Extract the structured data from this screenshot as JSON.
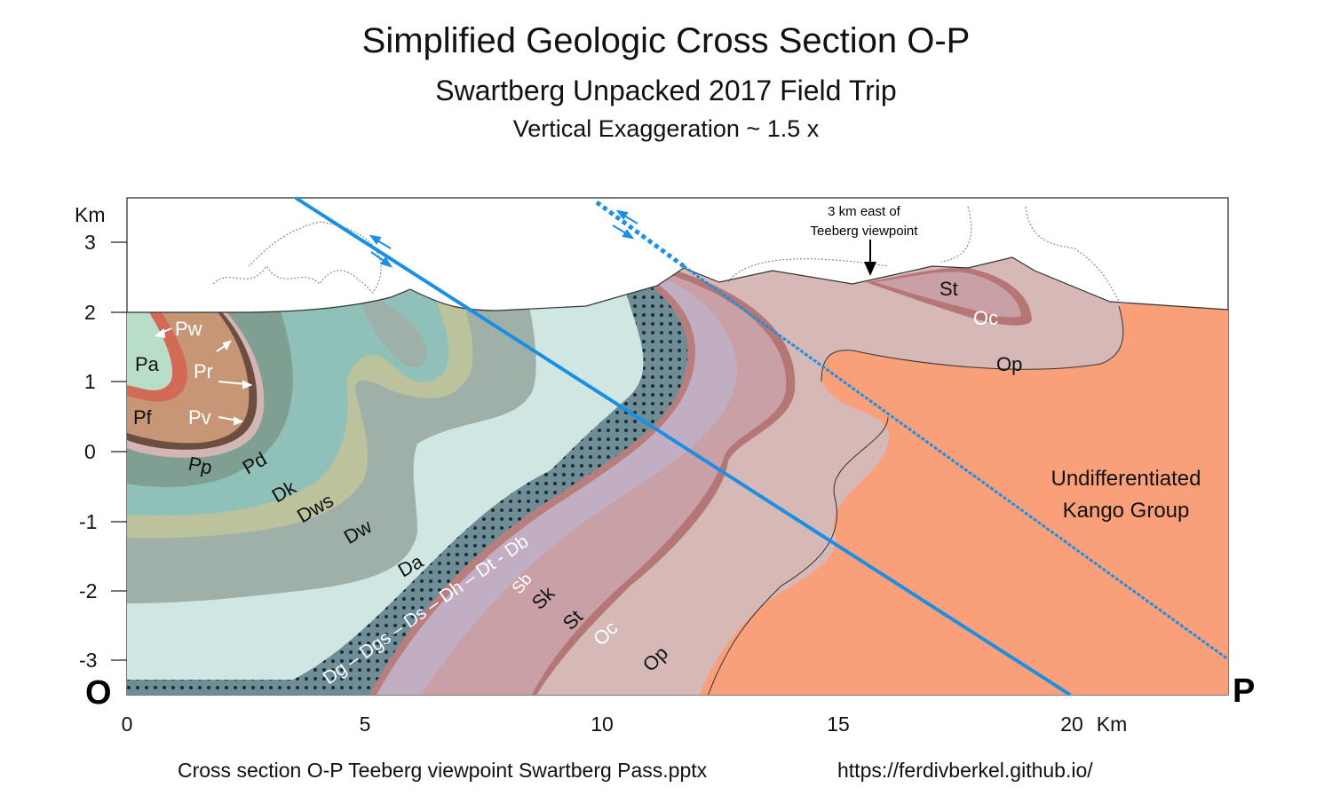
{
  "title": "Simplified Geologic Cross Section O-P",
  "subtitle": "Swartberg Unpacked 2017 Field Trip",
  "note": "Vertical Exaggeration ~ 1.5 x",
  "footer": {
    "file": "Cross section O-P Teeberg viewpoint Swartberg Pass.pptx",
    "url": "https://ferdivberkel.github.io/"
  },
  "axes": {
    "y_unit": "Km",
    "y_ticks": [
      "3",
      "2",
      "1",
      "0",
      "-1",
      "-2",
      "-3"
    ],
    "x_ticks": [
      "0",
      "5",
      "10",
      "15",
      "20"
    ],
    "x_unit": "Km",
    "left_end": "O",
    "right_end": "P"
  },
  "annotation": {
    "line1": "3 km east of",
    "line2": "Teeberg viewpoint"
  },
  "units": {
    "Pa": "Pa",
    "Pw": "Pw",
    "Pr": "Pr",
    "Pf": "Pf",
    "Pv": "Pv",
    "Pp": "Pp",
    "Pd": "Pd",
    "Dk": "Dk",
    "Dws": "Dws",
    "Dw": "Dw",
    "Da": "Da",
    "Dg_chain": "Dg – Dgs – Ds – Dh – Dt - Db",
    "Sb": "Sb",
    "Sk": "Sk",
    "St_lower": "St",
    "Oc_lower": "Oc",
    "Op_lower": "Op",
    "St_upper": "St",
    "Oc_upper": "Oc",
    "Op_upper": "Op",
    "kango1": "Undifferentiated",
    "kango2": "Kango Group"
  },
  "colors": {
    "kango": "#f9a07b",
    "op": "#d6b9b7",
    "oc": "#b57676",
    "st": "#c8a0a6",
    "sk": "#c2aec3",
    "sb": "#b87d7d",
    "dotted": "#6e8d96",
    "da": "#cfe6e3",
    "dw": "#9eb0a8",
    "dws": "#bcc39c",
    "dk": "#8fc1b9",
    "pd": "#7f9f93",
    "pp": "#d4b5b5",
    "pv": "#b08e7c",
    "pf": "#c69677",
    "pw": "#d26a55",
    "pa": "#b9dec8",
    "fault": "#1a8fe3"
  }
}
